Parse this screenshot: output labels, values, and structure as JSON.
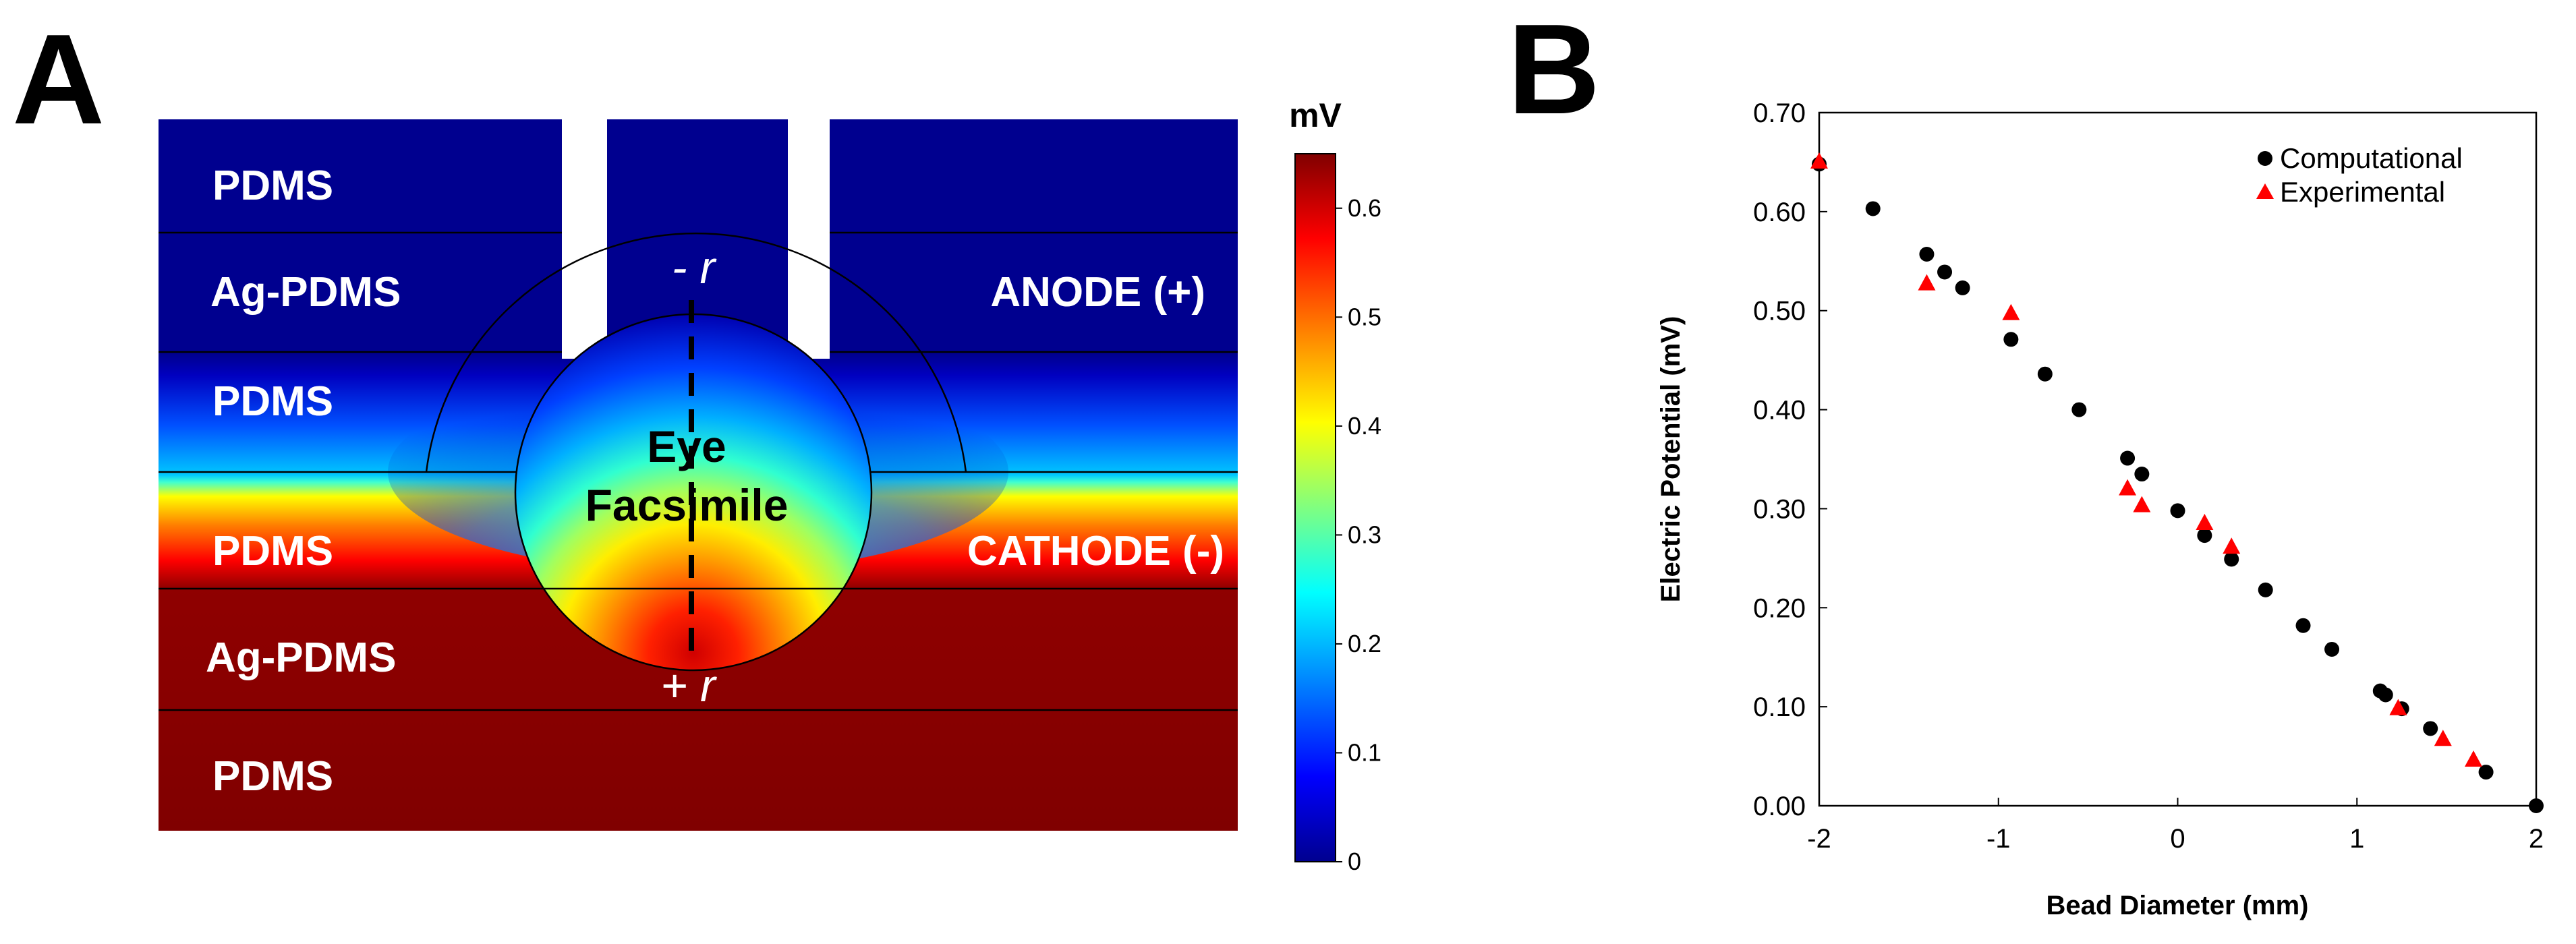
{
  "panel_a": {
    "letter": "A",
    "layers_left": [
      "PDMS",
      "Ag-PDMS",
      "PDMS",
      "PDMS",
      "Ag-PDMS",
      "PDMS"
    ],
    "anode_label": "ANODE (+)",
    "cathode_label": "CATHODE (-)",
    "eye_label_line1": "Eye",
    "eye_label_line2": "Facsimile",
    "minus_r": "- r",
    "plus_r": "+ r",
    "colorbar": {
      "unit": "mV",
      "ticks": [
        "0",
        "0.1",
        "0.2",
        "0.3",
        "0.4",
        "0.5",
        "0.6"
      ],
      "tick_values": [
        0,
        0.1,
        0.2,
        0.3,
        0.4,
        0.5,
        0.6
      ],
      "max": 0.65,
      "colors": [
        "#00008f",
        "#0000ff",
        "#0080ff",
        "#00ffff",
        "#80ff80",
        "#ffff00",
        "#ff8000",
        "#ff0000",
        "#800000"
      ]
    }
  },
  "panel_b": {
    "letter": "B"
  },
  "chart_data": {
    "type": "scatter",
    "title": "",
    "xlabel": "Bead Diameter (mm)",
    "ylabel": "Electric Potential (mV)",
    "xlim": [
      -2,
      2
    ],
    "ylim": [
      0,
      0.7
    ],
    "xticks": [
      "-2",
      "-1",
      "0",
      "1",
      "2"
    ],
    "xtick_values": [
      -2,
      -1,
      0,
      1,
      2
    ],
    "yticks": [
      "0.00",
      "0.10",
      "0.20",
      "0.30",
      "0.40",
      "0.50",
      "0.60",
      "0.70"
    ],
    "ytick_values": [
      0,
      0.1,
      0.2,
      0.3,
      0.4,
      0.5,
      0.6,
      0.7
    ],
    "legend_position": "top-right",
    "series": [
      {
        "name": "Computational",
        "marker": "circle",
        "color": "#000000",
        "x": [
          -2.0,
          -1.7,
          -1.4,
          -1.3,
          -1.2,
          -0.93,
          -0.74,
          -0.55,
          -0.28,
          -0.2,
          0.0,
          0.15,
          0.3,
          0.49,
          0.7,
          0.86,
          1.13,
          1.16,
          1.25,
          1.41,
          1.72,
          2.0
        ],
        "y": [
          0.648,
          0.603,
          0.557,
          0.539,
          0.523,
          0.471,
          0.436,
          0.4,
          0.351,
          0.335,
          0.298,
          0.273,
          0.249,
          0.218,
          0.182,
          0.158,
          0.116,
          0.112,
          0.098,
          0.078,
          0.034,
          0.0
        ]
      },
      {
        "name": "Experimental",
        "marker": "triangle",
        "color": "#ff0000",
        "x": [
          -2.0,
          -1.4,
          -0.93,
          -0.28,
          -0.2,
          0.15,
          0.3,
          1.23,
          1.48,
          1.65
        ],
        "y": [
          0.65,
          0.527,
          0.497,
          0.32,
          0.303,
          0.285,
          0.261,
          0.098,
          0.067,
          0.046
        ]
      }
    ]
  }
}
